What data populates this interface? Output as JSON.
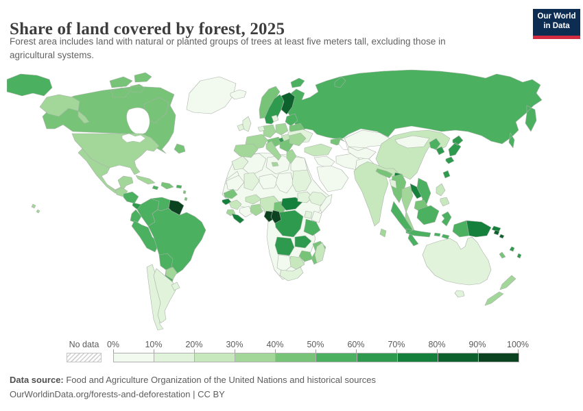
{
  "chart_data": {
    "type": "choropleth",
    "title": "Share of land covered by forest, 2025",
    "subtitle": "Forest area includes land with natural or planted groups of trees at least five meters tall, excluding those in agricultural systems.",
    "unit": "%",
    "legend": {
      "no_data_label": "No data",
      "tick_labels": [
        "0%",
        "10%",
        "20%",
        "30%",
        "40%",
        "50%",
        "60%",
        "70%",
        "80%",
        "90%",
        "100%"
      ],
      "bin_edges": [
        0,
        10,
        20,
        30,
        40,
        50,
        60,
        70,
        80,
        90,
        100
      ],
      "colors": [
        "#f2faef",
        "#e1f3da",
        "#c6e8bc",
        "#a3d79a",
        "#77c478",
        "#4cb061",
        "#2e9a4e",
        "#15803c",
        "#0c612c",
        "#0b421f"
      ],
      "border_color": "#aab2aa"
    },
    "regions": [
      {
        "id": "russia",
        "name": "Russia",
        "value": 52
      },
      {
        "id": "canada",
        "name": "Canada",
        "value": 45
      },
      {
        "id": "greenland",
        "name": "Greenland",
        "value": 0.5
      },
      {
        "id": "usa",
        "name": "United States",
        "value": 34
      },
      {
        "id": "mexico",
        "name": "Mexico",
        "value": 34
      },
      {
        "id": "guatemala",
        "name": "Guatemala",
        "value": 33
      },
      {
        "id": "honduras-nicaragua",
        "name": "Honduras & Nicaragua",
        "value": 56
      },
      {
        "id": "costa-rica-panama",
        "name": "Costa Rica & Panama",
        "value": 62
      },
      {
        "id": "cuba",
        "name": "Cuba",
        "value": 32
      },
      {
        "id": "hispaniola",
        "name": "Haiti & Dominican Republic",
        "value": 44
      },
      {
        "id": "jamaica",
        "name": "Jamaica",
        "value": 55
      },
      {
        "id": "puerto-rico",
        "name": "Puerto Rico",
        "value": 55
      },
      {
        "id": "lesser-antilles",
        "name": "Lesser Antilles",
        "value": 45
      },
      {
        "id": "colombia",
        "name": "Colombia",
        "value": 53
      },
      {
        "id": "venezuela",
        "name": "Venezuela",
        "value": 54
      },
      {
        "id": "guyanas",
        "name": "Guyana, Suriname & French Guiana",
        "value": 93
      },
      {
        "id": "ecuador",
        "name": "Ecuador",
        "value": 50
      },
      {
        "id": "peru",
        "name": "Peru",
        "value": 57
      },
      {
        "id": "brazil",
        "name": "Brazil",
        "value": 59
      },
      {
        "id": "bolivia",
        "name": "Bolivia",
        "value": 51
      },
      {
        "id": "paraguay",
        "name": "Paraguay",
        "value": 39
      },
      {
        "id": "uruguay",
        "name": "Uruguay",
        "value": 12
      },
      {
        "id": "chile",
        "name": "Chile",
        "value": 18
      },
      {
        "id": "argentina",
        "name": "Argentina",
        "value": 11
      },
      {
        "id": "africa-sahara",
        "name": "Northern Africa (Sahara)",
        "value": 2
      },
      {
        "id": "morocco",
        "name": "Morocco",
        "value": 13
      },
      {
        "id": "western-sahara",
        "name": "Western Sahara",
        "value": 3
      },
      {
        "id": "algeria",
        "name": "Algeria",
        "value": 1
      },
      {
        "id": "libya",
        "name": "Libya & Tunisia",
        "value": 1
      },
      {
        "id": "egypt",
        "name": "Egypt",
        "value": 0.1
      },
      {
        "id": "mauritania",
        "name": "Mauritania",
        "value": 0.5
      },
      {
        "id": "mali",
        "name": "Mali",
        "value": 11
      },
      {
        "id": "niger",
        "name": "Niger",
        "value": 1
      },
      {
        "id": "chad",
        "name": "Chad",
        "value": 3
      },
      {
        "id": "sudan",
        "name": "Sudan",
        "value": 10
      },
      {
        "id": "senegal",
        "name": "Senegal",
        "value": 41
      },
      {
        "id": "guinea-bissau",
        "name": "Guinea-Bissau",
        "value": 70
      },
      {
        "id": "guinea",
        "name": "Guinea",
        "value": 26
      },
      {
        "id": "sierra-leone",
        "name": "Sierra Leone",
        "value": 35
      },
      {
        "id": "liberia",
        "name": "Liberia",
        "value": 78
      },
      {
        "id": "ivory-coast",
        "name": "Cote d'Ivoire",
        "value": 9
      },
      {
        "id": "ghana",
        "name": "Ghana, Togo & Benin",
        "value": 34
      },
      {
        "id": "burkina-faso",
        "name": "Burkina Faso",
        "value": 22
      },
      {
        "id": "nigeria",
        "name": "Nigeria",
        "value": 23
      },
      {
        "id": "cameroon",
        "name": "Cameroon",
        "value": 42
      },
      {
        "id": "central-african-republic",
        "name": "Central African Republic",
        "value": 72
      },
      {
        "id": "south-sudan",
        "name": "South Sudan",
        "value": 11
      },
      {
        "id": "ethiopia",
        "name": "Ethiopia",
        "value": 15
      },
      {
        "id": "somalia",
        "name": "Somalia",
        "value": 9
      },
      {
        "id": "kenya",
        "name": "Kenya",
        "value": 6
      },
      {
        "id": "uganda",
        "name": "Uganda",
        "value": 12
      },
      {
        "id": "drc",
        "name": "Democratic Republic of Congo",
        "value": 62
      },
      {
        "id": "gabon",
        "name": "Gabon",
        "value": 91
      },
      {
        "id": "congo",
        "name": "Congo",
        "value": 90
      },
      {
        "id": "angola",
        "name": "Angola",
        "value": 60
      },
      {
        "id": "zambia",
        "name": "Zambia",
        "value": 60
      },
      {
        "id": "tanzania",
        "name": "Tanzania",
        "value": 51
      },
      {
        "id": "mozambique",
        "name": "Mozambique",
        "value": 46
      },
      {
        "id": "zimbabwe",
        "name": "Zimbabwe",
        "value": 44
      },
      {
        "id": "botswana",
        "name": "Botswana",
        "value": 25
      },
      {
        "id": "namibia",
        "name": "Namibia",
        "value": 8
      },
      {
        "id": "south-africa",
        "name": "South Africa",
        "value": 14
      },
      {
        "id": "madagascar",
        "name": "Madagascar",
        "value": 21
      },
      {
        "id": "iceland",
        "name": "Iceland",
        "value": 1
      },
      {
        "id": "uk",
        "name": "United Kingdom",
        "value": 13
      },
      {
        "id": "ireland",
        "name": "Ireland",
        "value": 12
      },
      {
        "id": "norway",
        "name": "Norway",
        "value": 43
      },
      {
        "id": "sweden",
        "name": "Sweden",
        "value": 69
      },
      {
        "id": "finland",
        "name": "Finland",
        "value": 81
      },
      {
        "id": "denmark",
        "name": "Denmark",
        "value": 16
      },
      {
        "id": "baltics",
        "name": "Baltic states",
        "value": 52
      },
      {
        "id": "belarus",
        "name": "Belarus",
        "value": 43
      },
      {
        "id": "ukraine",
        "name": "Ukraine",
        "value": 17
      },
      {
        "id": "poland",
        "name": "Poland",
        "value": 31
      },
      {
        "id": "germany",
        "name": "Germany",
        "value": 33
      },
      {
        "id": "benelux",
        "name": "Belgium & Netherlands",
        "value": 11
      },
      {
        "id": "france",
        "name": "France",
        "value": 32
      },
      {
        "id": "iberia",
        "name": "Spain & Portugal",
        "value": 36
      },
      {
        "id": "alpine",
        "name": "Austria & Switzerland",
        "value": 44
      },
      {
        "id": "italy",
        "name": "Italy",
        "value": 32
      },
      {
        "id": "balkans",
        "name": "Balkans",
        "value": 42
      },
      {
        "id": "slovenia",
        "name": "Slovenia",
        "value": 62
      },
      {
        "id": "hungary",
        "name": "Hungary",
        "value": 23
      },
      {
        "id": "romania-bulgaria",
        "name": "Romania & Bulgaria",
        "value": 33
      },
      {
        "id": "greece",
        "name": "Greece",
        "value": 30
      },
      {
        "id": "turkey",
        "name": "Turkey",
        "value": 29
      },
      {
        "id": "caucasus",
        "name": "Georgia & Azerbaijan",
        "value": 42
      },
      {
        "id": "levant-iraq",
        "name": "Syria & Iraq",
        "value": 2
      },
      {
        "id": "arabia",
        "name": "Arabian Peninsula",
        "value": 1
      },
      {
        "id": "iran",
        "name": "Iran",
        "value": 7
      },
      {
        "id": "afghan-pakistan",
        "name": "Afghanistan & Pakistan",
        "value": 4
      },
      {
        "id": "central-asia",
        "name": "Kazakhstan & Central Asia",
        "value": 2
      },
      {
        "id": "china",
        "name": "China",
        "value": 24
      },
      {
        "id": "mongolia",
        "name": "Mongolia",
        "value": 9
      },
      {
        "id": "north-korea",
        "name": "North Korea",
        "value": 54
      },
      {
        "id": "south-korea",
        "name": "South Korea",
        "value": 64
      },
      {
        "id": "japan",
        "name": "Japan",
        "value": 68
      },
      {
        "id": "taiwan",
        "name": "Taiwan",
        "value": 60
      },
      {
        "id": "india",
        "name": "India",
        "value": 24
      },
      {
        "id": "nepal",
        "name": "Nepal",
        "value": 42
      },
      {
        "id": "bhutan",
        "name": "Bhutan",
        "value": 72
      },
      {
        "id": "myanmar",
        "name": "Myanmar",
        "value": 43
      },
      {
        "id": "bangladesh",
        "name": "Bangladesh",
        "value": 14
      },
      {
        "id": "sri-lanka",
        "name": "Sri Lanka",
        "value": 34
      },
      {
        "id": "thailand",
        "name": "Thailand",
        "value": 39
      },
      {
        "id": "laos",
        "name": "Laos",
        "value": 72
      },
      {
        "id": "vietnam",
        "name": "Vietnam",
        "value": 51
      },
      {
        "id": "cambodia",
        "name": "Cambodia",
        "value": 45
      },
      {
        "id": "malaysia",
        "name": "Malaysia",
        "value": 58
      },
      {
        "id": "indonesia",
        "name": "Indonesia",
        "value": 53
      },
      {
        "id": "philippines",
        "name": "Philippines",
        "value": 24
      },
      {
        "id": "west-papua",
        "name": "Indonesia (Papua)",
        "value": 53
      },
      {
        "id": "papua-new-guinea",
        "name": "Papua New Guinea",
        "value": 79
      },
      {
        "id": "solomon-islands",
        "name": "Solomon Islands",
        "value": 88
      },
      {
        "id": "australia",
        "name": "Australia",
        "value": 17
      },
      {
        "id": "new-zealand",
        "name": "New Zealand",
        "value": 38
      },
      {
        "id": "new-caledonia",
        "name": "New Caledonia",
        "value": 46
      },
      {
        "id": "vanuatu-fiji",
        "name": "Vanuatu & Fiji",
        "value": 64
      }
    ]
  },
  "logo": {
    "line1": "Our World",
    "line2": "in Data"
  },
  "footer": {
    "datasource_label": "Data source:",
    "datasource_text": " Food and Agriculture Organization of the United Nations and historical sources",
    "link_text": "OurWorldinData.org/forests-and-deforestation",
    "separator": " | ",
    "license_text": "CC BY"
  }
}
